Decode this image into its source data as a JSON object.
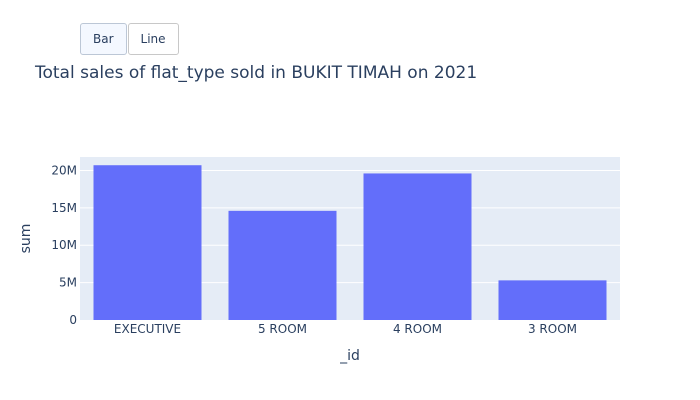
{
  "buttons": [
    {
      "label": "Bar",
      "active": true
    },
    {
      "label": "Line",
      "active": false
    }
  ],
  "colors": {
    "bar": "#636efa",
    "plot_bg": "#e5ecf6",
    "grid": "#ffffff",
    "text": "#2a3f5f"
  },
  "chart_data": {
    "type": "bar",
    "title": "Total sales of flat_type sold in BUKIT TIMAH on 2021",
    "xlabel": "_id",
    "ylabel": "sum",
    "categories": [
      "EXECUTIVE",
      "5 ROOM",
      "4 ROOM",
      "3 ROOM"
    ],
    "values": [
      20700000,
      14600000,
      19600000,
      5300000
    ],
    "ylim": [
      0,
      21800000
    ],
    "yticks": [
      {
        "value": 0,
        "label": "0"
      },
      {
        "value": 5000000,
        "label": "5M"
      },
      {
        "value": 10000000,
        "label": "10M"
      },
      {
        "value": 15000000,
        "label": "15M"
      },
      {
        "value": 20000000,
        "label": "20M"
      }
    ],
    "grid": true,
    "legend": "none"
  }
}
